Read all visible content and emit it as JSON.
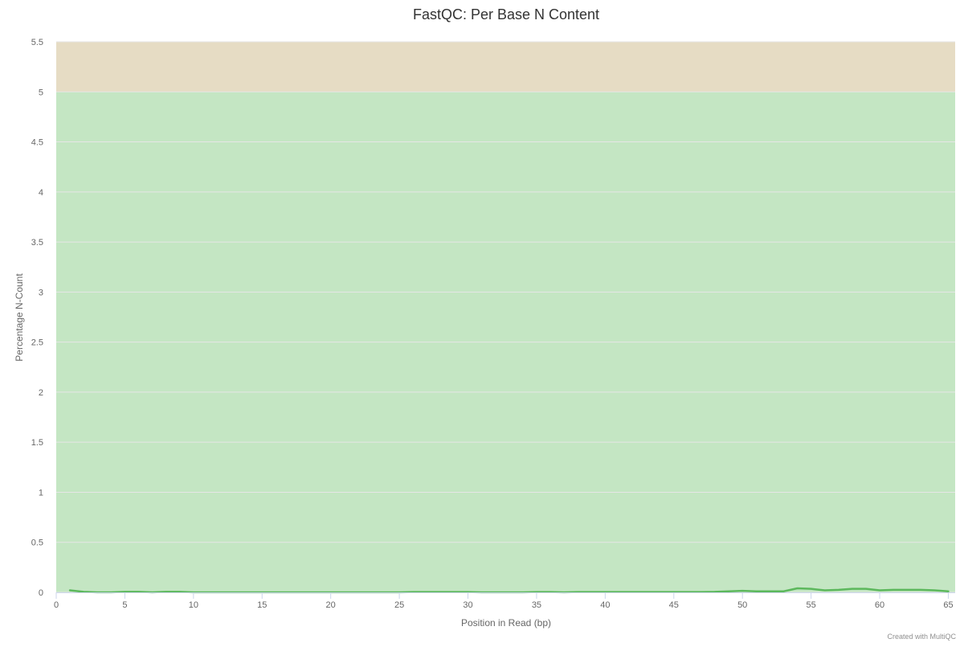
{
  "chart_data": {
    "type": "line",
    "title": "FastQC: Per Base N Content",
    "xlabel": "Position in Read (bp)",
    "ylabel": "Percentage N-Count",
    "xlim": [
      0,
      65.5
    ],
    "ylim": [
      0,
      5.5
    ],
    "x_ticks": [
      0,
      5,
      10,
      15,
      20,
      25,
      30,
      35,
      40,
      45,
      50,
      55,
      60,
      65
    ],
    "y_ticks": [
      0,
      0.5,
      1,
      1.5,
      2,
      2.5,
      3,
      3.5,
      4,
      4.5,
      5,
      5.5
    ],
    "grid": true,
    "bands": [
      {
        "from": 0,
        "to": 5,
        "color": "#c4e6c3",
        "status": "pass"
      },
      {
        "from": 5,
        "to": 5.5,
        "color": "#e6dcc4",
        "status": "warn"
      }
    ],
    "series": [
      {
        "color": "#5cb85c",
        "x": [
          1,
          2,
          3,
          4,
          5,
          6,
          7,
          8,
          9,
          10,
          11,
          12,
          13,
          14,
          15,
          16,
          17,
          18,
          19,
          20,
          21,
          22,
          23,
          24,
          25,
          26,
          27,
          28,
          29,
          30,
          31,
          32,
          33,
          34,
          35,
          36,
          37,
          38,
          39,
          40,
          41,
          42,
          43,
          44,
          45,
          46,
          47,
          48,
          49,
          50,
          51,
          52,
          53,
          54,
          55,
          56,
          57,
          58,
          59,
          60,
          61,
          62,
          63,
          64,
          65
        ],
        "values": [
          0.02,
          0.005,
          0,
          0,
          0.005,
          0.005,
          0,
          0.005,
          0.005,
          0,
          0,
          0,
          0,
          0,
          0,
          0,
          0,
          0,
          0,
          0,
          0,
          0,
          0,
          0,
          0,
          0.003,
          0.003,
          0.003,
          0.003,
          0.003,
          0,
          0,
          0,
          0,
          0.003,
          0.003,
          0,
          0.003,
          0.003,
          0.003,
          0.003,
          0.003,
          0.003,
          0.003,
          0.003,
          0.003,
          0.003,
          0.005,
          0.01,
          0.015,
          0.01,
          0.01,
          0.01,
          0.04,
          0.035,
          0.02,
          0.025,
          0.035,
          0.035,
          0.02,
          0.025,
          0.025,
          0.025,
          0.02,
          0.01
        ]
      }
    ]
  },
  "credit": "Created with MultiQC"
}
